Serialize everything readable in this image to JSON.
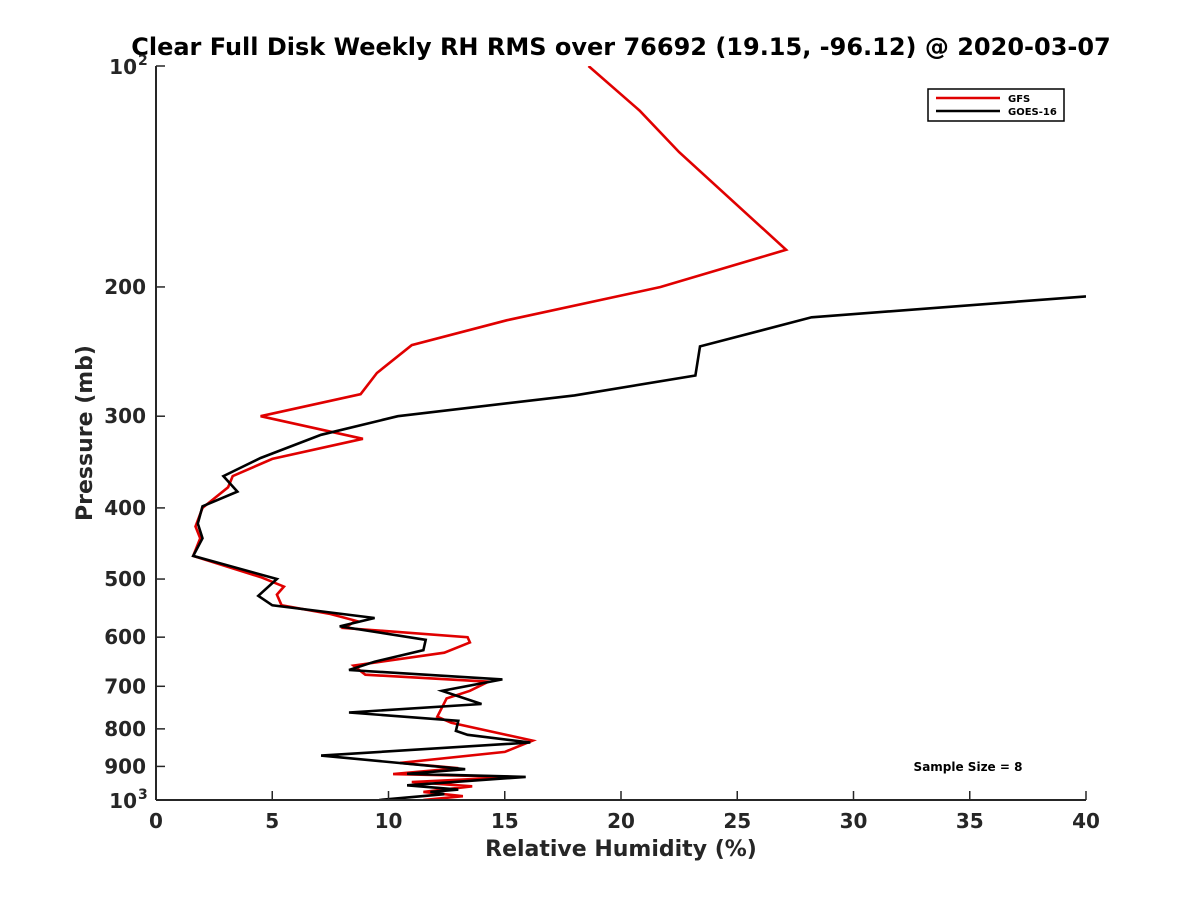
{
  "chart_data": {
    "type": "line",
    "title": "Clear Full Disk Weekly RH RMS over 76692 (19.15, -96.12) @ 2020-03-07",
    "xlabel": "Relative Humidity (%)",
    "ylabel": "Pressure (mb)",
    "xlim": [
      0,
      40
    ],
    "ylim": [
      100,
      1000
    ],
    "yscale": "log",
    "yreversed": true,
    "grid": false,
    "legend_position": "top-right",
    "x_ticks": [
      "0",
      "5",
      "10",
      "15",
      "20",
      "25",
      "30",
      "35",
      "40"
    ],
    "y_ticks": [
      {
        "value": 100,
        "base": "10",
        "exp": "2"
      },
      {
        "value": 200,
        "label": "200"
      },
      {
        "value": 300,
        "label": "300"
      },
      {
        "value": 400,
        "label": "400"
      },
      {
        "value": 500,
        "label": "500"
      },
      {
        "value": 600,
        "label": "600"
      },
      {
        "value": 700,
        "label": "700"
      },
      {
        "value": 800,
        "label": "800"
      },
      {
        "value": 900,
        "label": "900"
      },
      {
        "value": 1000,
        "base": "10",
        "exp": "3"
      }
    ],
    "annotation": "Sample Size = 8",
    "series": [
      {
        "name": "GFS",
        "color": "#e00000",
        "points": [
          [
            18.6,
            100
          ],
          [
            20.8,
            115
          ],
          [
            22.5,
            131
          ],
          [
            27.1,
            178
          ],
          [
            21.7,
            200
          ],
          [
            15.1,
            222
          ],
          [
            11.0,
            240
          ],
          [
            9.5,
            262
          ],
          [
            8.8,
            280
          ],
          [
            4.5,
            300
          ],
          [
            8.9,
            322
          ],
          [
            5.0,
            343
          ],
          [
            3.3,
            362
          ],
          [
            3.1,
            375
          ],
          [
            2.0,
            400
          ],
          [
            1.7,
            424
          ],
          [
            1.9,
            440
          ],
          [
            1.6,
            465
          ],
          [
            4.5,
            497
          ],
          [
            5.5,
            512
          ],
          [
            5.2,
            525
          ],
          [
            5.4,
            543
          ],
          [
            7.5,
            558
          ],
          [
            8.6,
            570
          ],
          [
            8.1,
            583
          ],
          [
            13.4,
            600
          ],
          [
            13.5,
            610
          ],
          [
            12.4,
            630
          ],
          [
            8.5,
            656
          ],
          [
            9.0,
            675
          ],
          [
            14.3,
            690
          ],
          [
            13.5,
            710
          ],
          [
            12.5,
            727
          ],
          [
            12.1,
            770
          ],
          [
            12.7,
            785
          ],
          [
            16.2,
            830
          ],
          [
            15.0,
            860
          ],
          [
            10.5,
            890
          ],
          [
            13.0,
            905
          ],
          [
            10.2,
            922
          ],
          [
            15.5,
            930
          ],
          [
            11.0,
            945
          ],
          [
            13.6,
            958
          ],
          [
            11.5,
            975
          ],
          [
            13.2,
            988
          ],
          [
            11.5,
            1000
          ]
        ]
      },
      {
        "name": "GOES-16",
        "color": "#000000",
        "points": [
          [
            40.0,
            206
          ],
          [
            28.2,
            220
          ],
          [
            23.4,
            241
          ],
          [
            23.2,
            264
          ],
          [
            18.0,
            281
          ],
          [
            10.4,
            300
          ],
          [
            7.1,
            318
          ],
          [
            4.5,
            342
          ],
          [
            2.9,
            362
          ],
          [
            3.5,
            380
          ],
          [
            2.0,
            398
          ],
          [
            1.8,
            420
          ],
          [
            2.0,
            440
          ],
          [
            1.6,
            465
          ],
          [
            5.2,
            500
          ],
          [
            4.4,
            527
          ],
          [
            5.0,
            543
          ],
          [
            9.4,
            565
          ],
          [
            7.9,
            580
          ],
          [
            11.6,
            605
          ],
          [
            11.5,
            625
          ],
          [
            9.4,
            648
          ],
          [
            8.3,
            665
          ],
          [
            14.9,
            685
          ],
          [
            12.3,
            710
          ],
          [
            14.0,
            740
          ],
          [
            8.3,
            760
          ],
          [
            13.0,
            780
          ],
          [
            12.9,
            805
          ],
          [
            13.4,
            815
          ],
          [
            16.1,
            835
          ],
          [
            7.1,
            870
          ],
          [
            13.3,
            908
          ],
          [
            10.8,
            921
          ],
          [
            15.9,
            930
          ],
          [
            10.8,
            955
          ],
          [
            13.0,
            968
          ],
          [
            11.8,
            975
          ],
          [
            12.4,
            982
          ],
          [
            9.6,
            1000
          ]
        ]
      }
    ]
  }
}
